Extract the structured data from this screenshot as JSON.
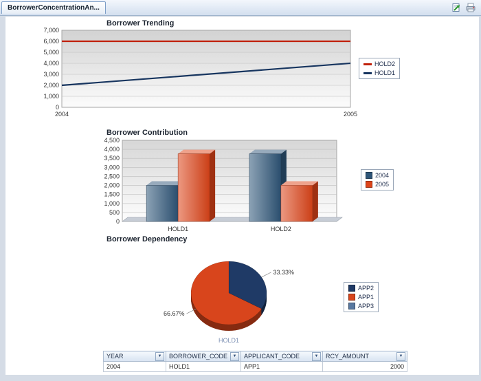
{
  "window": {
    "tab_label": "BorrowerConcentrationAn..."
  },
  "chart_data": [
    {
      "type": "line",
      "title": "Borrower Trending",
      "x": [
        "2004",
        "2005"
      ],
      "series": [
        {
          "name": "HOLD2",
          "color": "#c0200a",
          "values": [
            6000,
            6000
          ]
        },
        {
          "name": "HOLD1",
          "color": "#17355f",
          "values": [
            2000,
            4000
          ]
        }
      ],
      "ylim": [
        0,
        7000
      ],
      "ytick_step": 1000,
      "grid": true,
      "legend_position": "right"
    },
    {
      "type": "bar",
      "title": "Borrower Contribution",
      "categories": [
        "HOLD1",
        "HOLD2"
      ],
      "series": [
        {
          "name": "2004",
          "color": "#2e5578",
          "values": [
            2000,
            3750
          ]
        },
        {
          "name": "2005",
          "color": "#dd4419",
          "values": [
            3750,
            2000
          ]
        }
      ],
      "ylim": [
        0,
        4500
      ],
      "ytick_step": 500,
      "grid": true,
      "legend_position": "right"
    },
    {
      "type": "pie",
      "title": "Borrower Dependency",
      "slices": [
        {
          "label": "33.33%",
          "value": 33.33,
          "color": "#1f3a66"
        },
        {
          "label": "66.67%",
          "value": 66.67,
          "color": "#d8451c"
        }
      ],
      "legend": [
        {
          "name": "APP2",
          "color": "#1f3a66"
        },
        {
          "name": "APP1",
          "color": "#d8451c"
        },
        {
          "name": "APP3",
          "color": "#5878a0"
        }
      ],
      "footer_label": "HOLD1",
      "legend_position": "right"
    }
  ],
  "table": {
    "headers": [
      "YEAR",
      "BORROWER_CODE",
      "APPLICANT_CODE",
      "RCY_AMOUNT"
    ],
    "rows": [
      [
        "2004",
        "HOLD1",
        "APP1",
        "2000"
      ]
    ]
  }
}
